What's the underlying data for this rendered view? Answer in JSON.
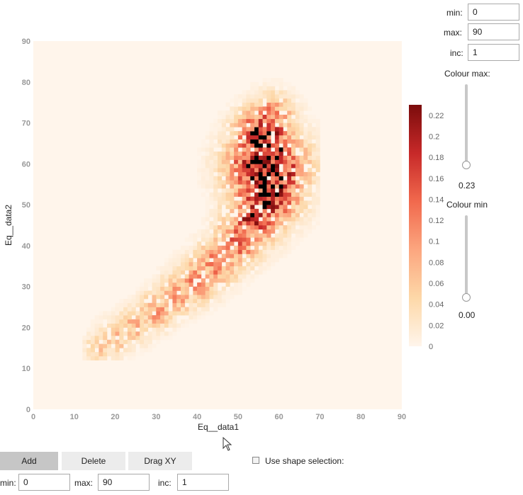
{
  "chart_data": {
    "type": "heatmap",
    "xlabel": "Eq__data1",
    "ylabel": "Eq__data2",
    "xlim": [
      0,
      90
    ],
    "ylim": [
      0,
      90
    ],
    "x_ticks": [
      "0",
      "10",
      "20",
      "30",
      "40",
      "50",
      "60",
      "70",
      "80",
      "90"
    ],
    "y_ticks": [
      "0",
      "10",
      "20",
      "30",
      "40",
      "50",
      "60",
      "70",
      "80",
      "90"
    ],
    "colorscale": [
      "#fff5eb",
      "#fdd8a8",
      "#fca67f",
      "#f1694d",
      "#c72929",
      "#7b0c0c"
    ],
    "saturated_color": "#000000",
    "zmin": 0,
    "zmax": 0.23,
    "colorbar_ticks": [
      "0",
      "0.02",
      "0.04",
      "0.06",
      "0.08",
      "0.1",
      "0.12",
      "0.14",
      "0.16",
      "0.18",
      "0.2",
      "0.22"
    ],
    "bin_size": 1,
    "density_ridges": [
      {
        "x": 16,
        "y": 15,
        "w": 1.6,
        "peak": 0.06
      },
      {
        "x": 20,
        "y": 17.5,
        "w": 2.0,
        "peak": 0.07
      },
      {
        "x": 25,
        "y": 20.5,
        "w": 2.0,
        "peak": 0.08
      },
      {
        "x": 30,
        "y": 24,
        "w": 2.0,
        "peak": 0.1
      },
      {
        "x": 35,
        "y": 28,
        "w": 2.2,
        "peak": 0.1
      },
      {
        "x": 40,
        "y": 31.5,
        "w": 2.4,
        "peak": 0.11
      },
      {
        "x": 45,
        "y": 36,
        "w": 2.4,
        "peak": 0.13
      },
      {
        "x": 50,
        "y": 41,
        "w": 2.6,
        "peak": 0.14
      },
      {
        "x": 54,
        "y": 47,
        "w": 3.0,
        "peak": 0.18
      },
      {
        "x": 57,
        "y": 53,
        "w": 3.5,
        "peak": 0.22
      },
      {
        "x": 57,
        "y": 59,
        "w": 4.0,
        "peak": 0.26
      },
      {
        "x": 56,
        "y": 66,
        "w": 3.0,
        "peak": 0.24
      },
      {
        "x": 58,
        "y": 71,
        "w": 2.5,
        "peak": 0.14
      }
    ]
  },
  "controls": {
    "top": {
      "min_label": "min:",
      "min_value": "0",
      "max_label": "max:",
      "max_value": "90",
      "inc_label": "inc:",
      "inc_value": "1"
    },
    "colour_max": {
      "label": "Colour max:",
      "value": "0.23",
      "level": 1.0
    },
    "colour_min": {
      "label": "Colour min",
      "value": "0.00",
      "level": 0.0
    }
  },
  "toolbar": {
    "add_label": "Add",
    "delete_label": "Delete",
    "dragxy_label": "Drag XY",
    "shape_selection_label": "Use shape selection:"
  },
  "bottom": {
    "min_label": "min:",
    "min_value": "0",
    "max_label": "max:",
    "max_value": "90",
    "inc_label": "inc:",
    "inc_value": "1"
  }
}
